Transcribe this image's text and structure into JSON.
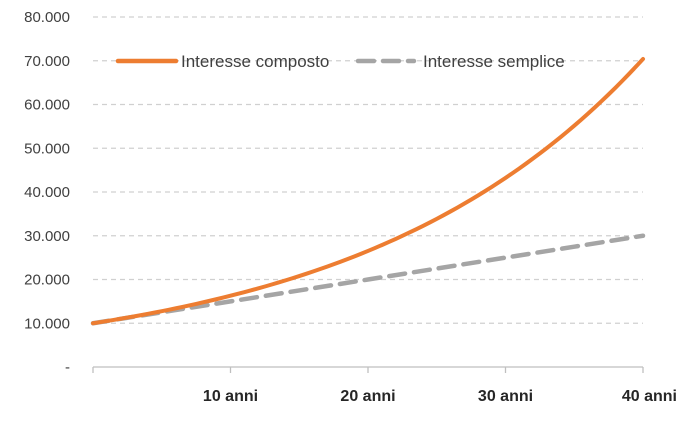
{
  "chart_data": {
    "type": "line",
    "title": "",
    "xlabel": "",
    "ylabel": "",
    "x": [
      0,
      5,
      10,
      15,
      20,
      25,
      30,
      35,
      40
    ],
    "x_ticks": [
      {
        "value": 10,
        "label": "10 anni"
      },
      {
        "value": 20,
        "label": "20 anni"
      },
      {
        "value": 30,
        "label": "30 anni"
      },
      {
        "value": 40,
        "label": "40 anni"
      }
    ],
    "y_ticks": [
      {
        "value": 0,
        "label": "-"
      },
      {
        "value": 10000,
        "label": "10.000"
      },
      {
        "value": 20000,
        "label": "20.000"
      },
      {
        "value": 30000,
        "label": "30.000"
      },
      {
        "value": 40000,
        "label": "40.000"
      },
      {
        "value": 50000,
        "label": "50.000"
      },
      {
        "value": 60000,
        "label": "60.000"
      },
      {
        "value": 70000,
        "label": "70.000"
      },
      {
        "value": 80000,
        "label": "80.000"
      }
    ],
    "xlim": [
      0,
      40
    ],
    "ylim": [
      0,
      80000
    ],
    "grid": true,
    "legend_position": "top",
    "series": [
      {
        "name": "Interesse composto",
        "color": "#ED7D31",
        "style": "solid",
        "values": [
          10000,
          12763,
          16289,
          20789,
          26533,
          33864,
          43219,
          55160,
          70400
        ]
      },
      {
        "name": "Interesse semplice",
        "color": "#A5A5A5",
        "style": "dashed",
        "values": [
          10000,
          12500,
          15000,
          17500,
          20000,
          22500,
          25000,
          27500,
          30000
        ]
      }
    ]
  }
}
